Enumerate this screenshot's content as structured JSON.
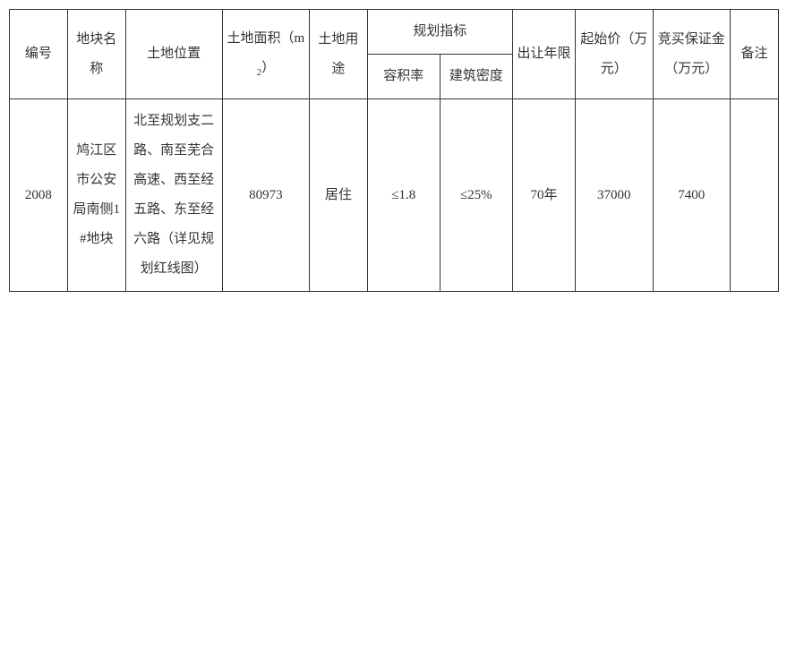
{
  "table": {
    "headers": {
      "id": "编号",
      "name": "地块名称",
      "location": "土地位置",
      "area_prefix": "土地面积（m",
      "area_sub": "2",
      "area_suffix": "）",
      "use": "土地用途",
      "planning_group": "规划指标",
      "ratio": "容积率",
      "density": "建筑密度",
      "term": "出让年限",
      "start_price": "起始价（万元）",
      "deposit": "竞买保证金（万元）",
      "note": "备注"
    },
    "row": {
      "id": "2008",
      "name": "鸠江区市公安局南侧1#地块",
      "location": "北至规划支二路、南至芜合高速、西至经五路、东至经六路（详见规划红线图）",
      "area": "80973",
      "use": "居住",
      "ratio": "≤1.8",
      "density": "≤25%",
      "term": "70年",
      "start_price": "37000",
      "deposit": "7400",
      "note": ""
    },
    "colors": {
      "border": "#333333",
      "text": "#333333",
      "background": "#ffffff"
    },
    "font_size_header": 15,
    "font_size_cell": 15
  }
}
